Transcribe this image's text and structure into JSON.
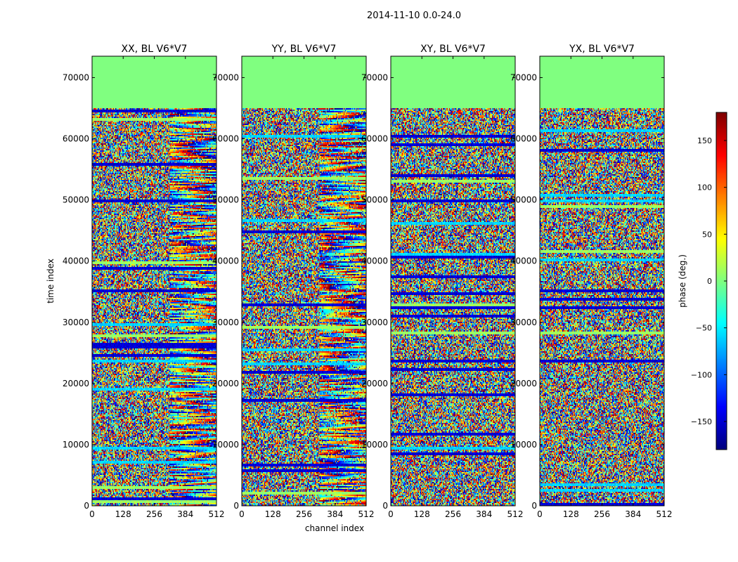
{
  "figure": {
    "suptitle": "2014-11-10 0.0-24.0"
  },
  "chart_data": {
    "type": "heatmap",
    "title": "2014-11-10 0.0-24.0",
    "xlabel": "channel index",
    "ylabel": "time index",
    "xlim": [
      0,
      512
    ],
    "ylim": [
      0,
      73500
    ],
    "xticks": [
      0,
      128,
      256,
      384,
      512
    ],
    "yticks": [
      0,
      10000,
      20000,
      30000,
      40000,
      50000,
      60000,
      70000
    ],
    "colormap": "jet",
    "panels": [
      {
        "title": "XX, BL V6*V7",
        "pol": "XX"
      },
      {
        "title": "YY, BL V6*V7",
        "pol": "YY"
      },
      {
        "title": "XY, BL V6*V7",
        "pol": "XY"
      },
      {
        "title": "YX, BL V6*V7",
        "pol": "YX"
      }
    ],
    "data_end_time_index": 65000,
    "empty_region_value": 0,
    "colorbar": {
      "label": "phase (deg.)",
      "vmin": -180,
      "vmax": 180,
      "ticks": [
        -150,
        -100,
        -50,
        0,
        50,
        100,
        150
      ]
    }
  }
}
